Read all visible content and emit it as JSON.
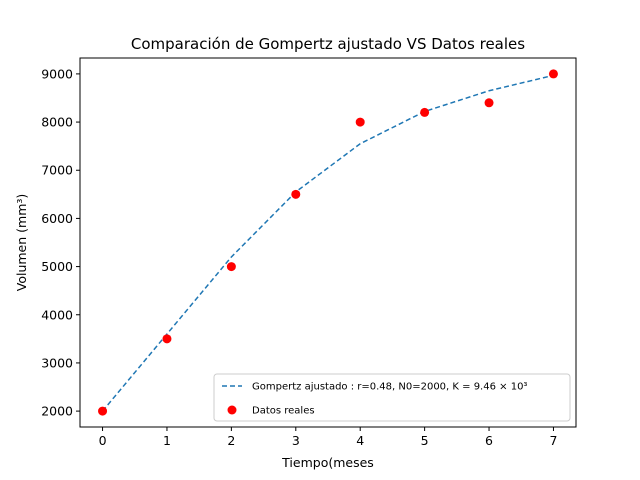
{
  "chart_data": {
    "type": "scatter",
    "title": "Comparación de Gompertz ajustado VS Datos reales",
    "xlabel": "Tiempo(meses",
    "ylabel": "Volumen (mm³)",
    "xlim": [
      -0.35,
      7.35
    ],
    "ylim": [
      1670,
      9330
    ],
    "xticks": [
      0,
      1,
      2,
      3,
      4,
      5,
      6,
      7
    ],
    "yticks": [
      2000,
      3000,
      4000,
      5000,
      6000,
      7000,
      8000,
      9000
    ],
    "legend_position": "lower-right",
    "grid": false,
    "series": [
      {
        "name": "Gompertz ajustado : r=0.48, N0=2000, K = 9.46 × 10³",
        "kind": "line",
        "style": "dashed",
        "color": "#1f77b4",
        "x": [
          0,
          1,
          2,
          3,
          4,
          5,
          6,
          7
        ],
        "y": [
          2000,
          3600,
          5200,
          6550,
          7550,
          8220,
          8650,
          8970
        ]
      },
      {
        "name": "Datos reales",
        "kind": "scatter",
        "color": "#ff0000",
        "x": [
          0,
          1,
          2,
          3,
          4,
          5,
          6,
          7
        ],
        "y": [
          2000,
          3500,
          5000,
          6500,
          8000,
          8200,
          8400,
          9000
        ]
      }
    ]
  }
}
